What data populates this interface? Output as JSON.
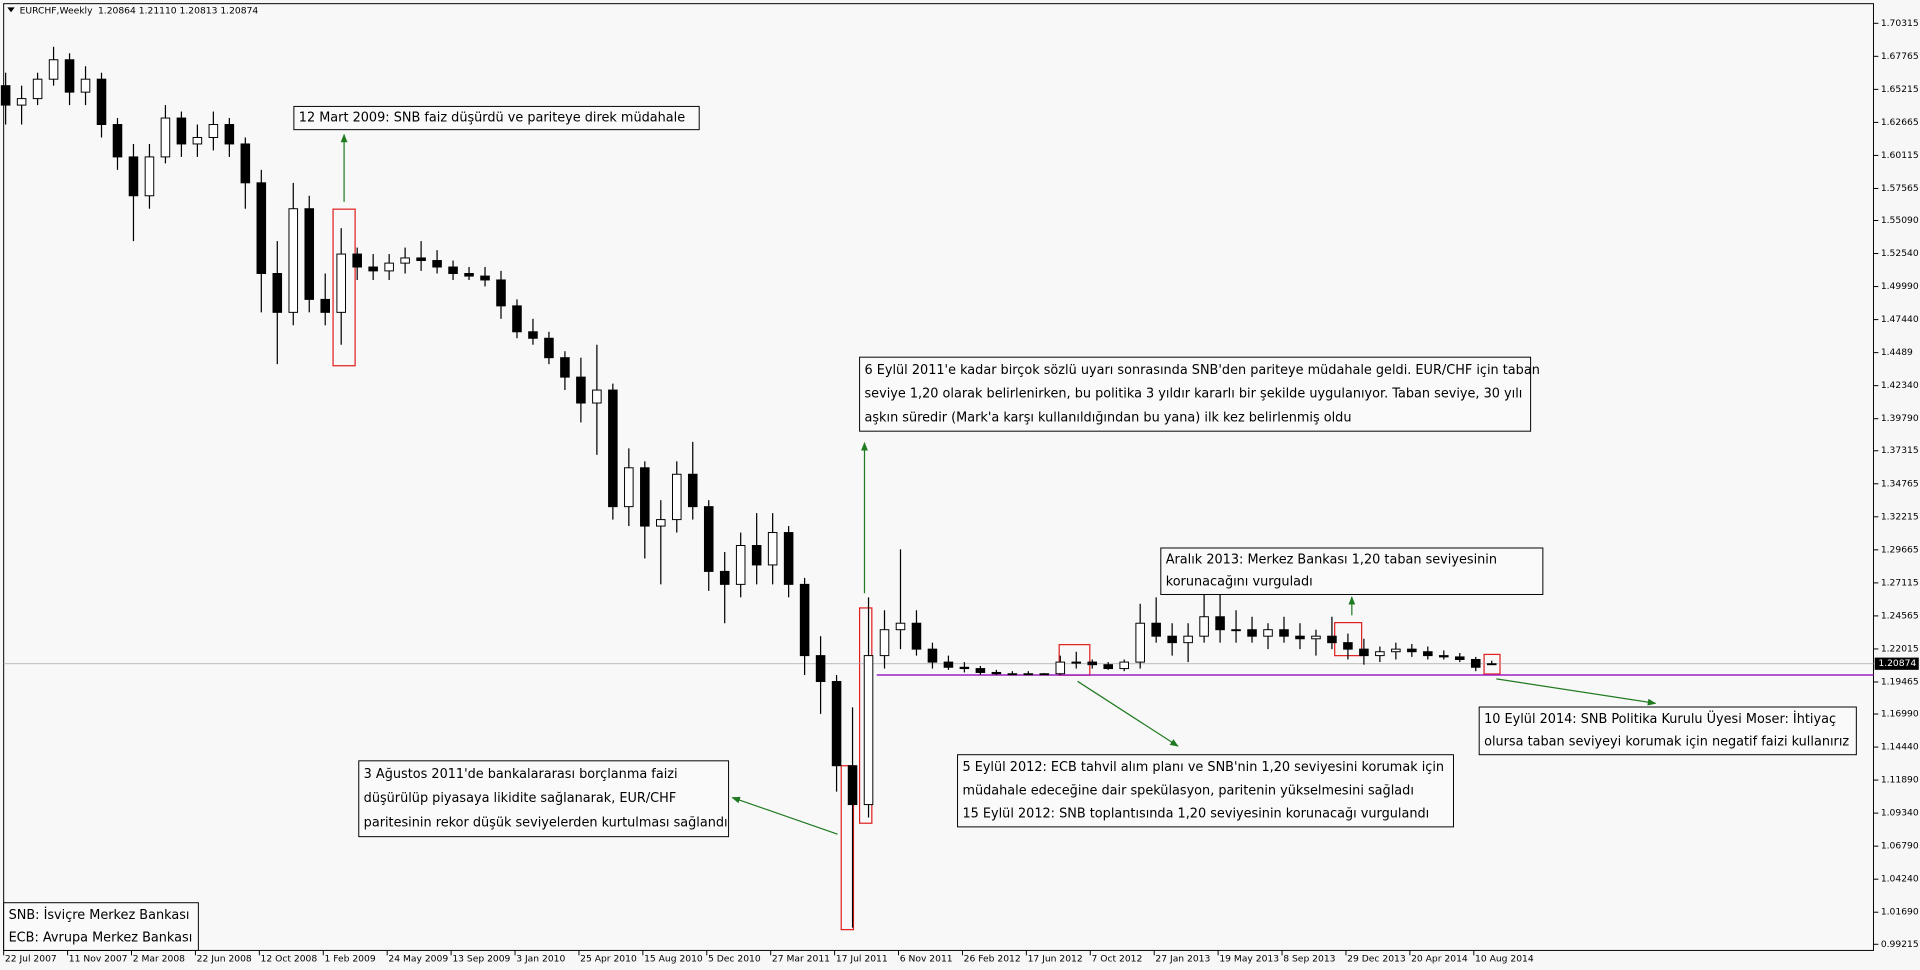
{
  "chart_data": {
    "type": "candlestick",
    "title": "EURCHF,Weekly",
    "subtitle": "1.20864 1.21110 1.20813 1.20874",
    "x": [
      "22 Jul 2007",
      "19 Aug 2007",
      "16 Sep 2007",
      "14 Oct 2007",
      "11 Nov 2007",
      "9 Dec 2007",
      "6 Jan 2008",
      "3 Feb 2008",
      "2 Mar 2008",
      "30 Mar 2008",
      "27 Apr 2008",
      "25 May 2008",
      "22 Jun 2008",
      "20 Jul 2008",
      "17 Aug 2008",
      "14 Sep 2008",
      "12 Oct 2008",
      "9 Nov 2008",
      "7 Dec 2008",
      "4 Jan 2009",
      "1 Feb 2009",
      "1 Mar 2009",
      "29 Mar 2009",
      "26 Apr 2009",
      "24 May 2009",
      "21 Jun 2009",
      "19 Jul 2009",
      "16 Aug 2009",
      "13 Sep 2009",
      "11 Oct 2009",
      "8 Nov 2009",
      "6 Dec 2009",
      "3 Jan 2010",
      "31 Jan 2010",
      "28 Feb 2010",
      "28 Mar 2010",
      "25 Apr 2010",
      "23 May 2010",
      "20 Jun 2010",
      "18 Jul 2010",
      "15 Aug 2010",
      "12 Sep 2010",
      "10 Oct 2010",
      "7 Nov 2010",
      "5 Dec 2010",
      "2 Jan 2011",
      "30 Jan 2011",
      "27 Feb 2011",
      "27 Mar 2011",
      "24 Apr 2011",
      "22 May 2011",
      "19 Jun 2011",
      "17 Jul 2011",
      "14 Aug 2011",
      "11 Sep 2011",
      "9 Oct 2011",
      "6 Nov 2011",
      "4 Dec 2011",
      "1 Jan 2012",
      "29 Jan 2012",
      "26 Feb 2012",
      "25 Mar 2012",
      "22 Apr 2012",
      "20 May 2012",
      "17 Jun 2012",
      "15 Jul 2012",
      "12 Aug 2012",
      "9 Sep 2012",
      "7 Oct 2012",
      "4 Nov 2012",
      "2 Dec 2012",
      "30 Dec 2012",
      "27 Jan 2013",
      "24 Feb 2013",
      "24 Mar 2013",
      "21 Apr 2013",
      "19 May 2013",
      "16 Jun 2013",
      "14 Jul 2013",
      "11 Aug 2013",
      "8 Sep 2013",
      "6 Oct 2013",
      "3 Nov 2013",
      "1 Dec 2013",
      "29 Dec 2013",
      "26 Jan 2014",
      "23 Feb 2014",
      "23 Mar 2014",
      "20 Apr 2014",
      "18 May 2014",
      "15 Jun 2014",
      "13 Jul 2014",
      "10 Aug 2014",
      "7 Sep 2014"
    ],
    "open": [
      1.655,
      1.64,
      1.645,
      1.66,
      1.675,
      1.65,
      1.66,
      1.625,
      1.6,
      1.57,
      1.6,
      1.63,
      1.61,
      1.615,
      1.625,
      1.61,
      1.58,
      1.51,
      1.48,
      1.56,
      1.49,
      1.48,
      1.525,
      1.515,
      1.512,
      1.518,
      1.522,
      1.52,
      1.515,
      1.51,
      1.508,
      1.505,
      1.485,
      1.465,
      1.46,
      1.445,
      1.43,
      1.41,
      1.42,
      1.33,
      1.36,
      1.315,
      1.32,
      1.355,
      1.33,
      1.28,
      1.27,
      1.3,
      1.285,
      1.31,
      1.27,
      1.215,
      1.195,
      1.13,
      1.1,
      1.215,
      1.235,
      1.24,
      1.22,
      1.21,
      1.206,
      1.205,
      1.202,
      1.201,
      1.2008,
      1.201,
      1.201,
      1.21,
      1.21,
      1.208,
      1.205,
      1.21,
      1.24,
      1.23,
      1.225,
      1.23,
      1.245,
      1.235,
      1.235,
      1.23,
      1.235,
      1.23,
      1.228,
      1.23,
      1.225,
      1.22,
      1.215,
      1.218,
      1.22,
      1.218,
      1.215,
      1.214,
      1.212,
      1.20864
    ],
    "high": [
      1.665,
      1.655,
      1.665,
      1.685,
      1.68,
      1.67,
      1.665,
      1.63,
      1.61,
      1.61,
      1.64,
      1.635,
      1.625,
      1.635,
      1.63,
      1.615,
      1.59,
      1.535,
      1.58,
      1.57,
      1.51,
      1.545,
      1.53,
      1.525,
      1.525,
      1.53,
      1.535,
      1.528,
      1.52,
      1.515,
      1.515,
      1.512,
      1.49,
      1.475,
      1.465,
      1.45,
      1.445,
      1.455,
      1.425,
      1.375,
      1.365,
      1.335,
      1.365,
      1.38,
      1.335,
      1.295,
      1.31,
      1.325,
      1.325,
      1.315,
      1.275,
      1.23,
      1.2,
      1.175,
      1.26,
      1.25,
      1.297,
      1.25,
      1.225,
      1.215,
      1.21,
      1.207,
      1.204,
      1.203,
      1.203,
      1.2015,
      1.215,
      1.218,
      1.212,
      1.21,
      1.212,
      1.255,
      1.26,
      1.24,
      1.24,
      1.265,
      1.262,
      1.25,
      1.245,
      1.24,
      1.245,
      1.24,
      1.235,
      1.245,
      1.232,
      1.228,
      1.222,
      1.225,
      1.224,
      1.222,
      1.219,
      1.217,
      1.214,
      1.2111
    ],
    "low": [
      1.625,
      1.625,
      1.64,
      1.655,
      1.64,
      1.64,
      1.615,
      1.59,
      1.535,
      1.56,
      1.595,
      1.6,
      1.6,
      1.605,
      1.6,
      1.56,
      1.48,
      1.44,
      1.47,
      1.48,
      1.47,
      1.455,
      1.505,
      1.505,
      1.505,
      1.51,
      1.512,
      1.51,
      1.505,
      1.505,
      1.5,
      1.475,
      1.46,
      1.455,
      1.44,
      1.42,
      1.395,
      1.37,
      1.32,
      1.315,
      1.29,
      1.27,
      1.31,
      1.32,
      1.265,
      1.24,
      1.26,
      1.27,
      1.27,
      1.26,
      1.2,
      1.17,
      1.11,
      1.005,
      1.09,
      1.205,
      1.22,
      1.215,
      1.205,
      1.204,
      1.202,
      1.2,
      1.2,
      1.2,
      1.2,
      1.2,
      1.2,
      1.205,
      1.205,
      1.204,
      1.203,
      1.205,
      1.225,
      1.215,
      1.21,
      1.225,
      1.225,
      1.225,
      1.225,
      1.22,
      1.225,
      1.22,
      1.215,
      1.22,
      1.212,
      1.208,
      1.21,
      1.212,
      1.214,
      1.212,
      1.212,
      1.21,
      1.203,
      1.20813
    ],
    "close": [
      1.64,
      1.645,
      1.66,
      1.675,
      1.65,
      1.66,
      1.625,
      1.6,
      1.57,
      1.6,
      1.63,
      1.61,
      1.615,
      1.625,
      1.61,
      1.58,
      1.51,
      1.48,
      1.56,
      1.49,
      1.48,
      1.525,
      1.515,
      1.512,
      1.518,
      1.522,
      1.52,
      1.515,
      1.51,
      1.508,
      1.505,
      1.485,
      1.465,
      1.46,
      1.445,
      1.43,
      1.41,
      1.42,
      1.33,
      1.36,
      1.315,
      1.32,
      1.355,
      1.33,
      1.28,
      1.27,
      1.3,
      1.285,
      1.31,
      1.27,
      1.215,
      1.195,
      1.13,
      1.1,
      1.215,
      1.235,
      1.24,
      1.22,
      1.21,
      1.206,
      1.205,
      1.202,
      1.201,
      1.2008,
      1.201,
      1.201,
      1.21,
      1.21,
      1.208,
      1.205,
      1.21,
      1.24,
      1.23,
      1.225,
      1.23,
      1.245,
      1.235,
      1.235,
      1.23,
      1.235,
      1.23,
      1.228,
      1.23,
      1.225,
      1.22,
      1.215,
      1.218,
      1.22,
      1.218,
      1.215,
      1.214,
      1.212,
      1.206,
      1.20874
    ],
    "up_color": "#ffffff",
    "down_color": "#000000",
    "ylim": [
      0.9874,
      1.7183
    ],
    "yticks": [
      1.70315,
      1.67765,
      1.65215,
      1.62665,
      1.60115,
      1.57565,
      {
        "value": 1.5509,
        "label": "1.55090"
      },
      {
        "value": 1.5254,
        "label": "1.52540"
      },
      {
        "value": 1.4999,
        "label": "1.49990"
      },
      {
        "value": 1.4744,
        "label": "1.47440"
      },
      1.4489,
      {
        "value": 1.4234,
        "label": "1.42340"
      },
      {
        "value": 1.3979,
        "label": "1.39790"
      },
      1.37315,
      1.34765,
      1.32215,
      1.29665,
      1.27115,
      1.24565,
      1.22015,
      1.19465,
      {
        "value": 1.1699,
        "label": "1.16990"
      },
      {
        "value": 1.1444,
        "label": "1.14440"
      },
      {
        "value": 1.1189,
        "label": "1.11890"
      },
      {
        "value": 1.0934,
        "label": "1.09340"
      },
      {
        "value": 1.0679,
        "label": "1.06790"
      },
      {
        "value": 1.0424,
        "label": "1.04240"
      },
      {
        "value": 1.0169,
        "label": "1.01690"
      },
      0.99215
    ],
    "xticks": [
      "22 Jul 2007",
      "11 Nov 2007",
      "2 Mar 2008",
      "22 Jun 2008",
      "12 Oct 2008",
      "1 Feb 2009",
      "24 May 2009",
      "13 Sep 2009",
      "3 Jan 2010",
      "25 Apr 2010",
      "15 Aug 2010",
      "5 Dec 2010",
      "27 Mar 2011",
      "17 Jul 2011",
      "6 Nov 2011",
      "26 Feb 2012",
      "17 Jun 2012",
      "7 Oct 2012",
      "27 Jan 2013",
      "19 May 2013",
      "8 Sep 2013",
      "29 Dec 2013",
      "20 Apr 2014",
      "10 Aug 2014"
    ],
    "current_price": 1.20874,
    "hlines": [
      {
        "value": 1.2,
        "color": "#a020c0"
      }
    ],
    "annotations": [
      {
        "lines": [
          "12 Mart 2009: SNB faiz düşürdü ve pariteye direk müdahale"
        ]
      },
      {
        "lines": [
          "6 Eylül 2011'e kadar birçok sözlü uyarı sonrasında SNB'den pariteye müdahale geldi. EUR/CHF için taban",
          "seviye 1,20 olarak belirlenirken, bu politika 3 yıldır kararlı bir şekilde uygulanıyor. Taban seviye, 30 yılı",
          "aşkın süredir (Mark'a karşı kullanıldığından bu yana) ilk kez belirlenmiş oldu"
        ]
      },
      {
        "lines": [
          "Aralık 2013: Merkez Bankası 1,20 taban seviyesinin",
          "korunacağını vurguladı"
        ]
      },
      {
        "lines": [
          "10 Eylül 2014: SNB Politika Kurulu Üyesi Moser: İhtiyaç",
          "olursa taban seviyeyi korumak için negatif faizi kullanırız"
        ]
      },
      {
        "lines": [
          "5 Eylül 2012: ECB tahvil alım planı ve SNB'nin 1,20 seviyesini korumak için",
          "müdahale edeceğine dair spekülasyon, paritenin yükselmesini sağladı",
          "15 Eylül 2012: SNB toplantısında 1,20 seviyesinin korunacağı vurgulandı"
        ]
      },
      {
        "lines": [
          "3 Ağustos 2011'de bankalararası borçlanma faizi",
          "düşürülüp piyasaya likidite sağlanarak, EUR/CHF",
          "paritesinin rekor düşük seviyelerden kurtulması sağlandı"
        ]
      },
      {
        "lines": [
          "SNB: İsviçre Merkez Bankası",
          "ECB: Avrupa Merkez Bankası"
        ]
      }
    ]
  }
}
